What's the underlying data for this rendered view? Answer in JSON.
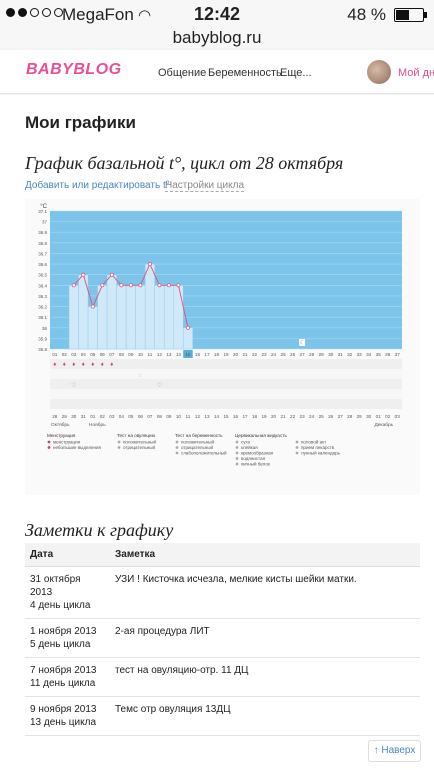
{
  "status": {
    "carrier": "MegaFon",
    "time": "12:42",
    "battery": "48 %",
    "battery_level": 0.48,
    "signal_bars": 2
  },
  "url": "babyblog.ru",
  "header": {
    "logo": "BABYBLOG",
    "nav": [
      "Общение",
      "Беременность",
      "Еще..."
    ],
    "myday": "Мой дне"
  },
  "page": {
    "title": "Мои графики",
    "chart_title": "График базальной t°, цикл от 28 октября",
    "edit_link": "Добавить или редактировать t°",
    "settings_link": "Настройки цикла"
  },
  "chart_data": {
    "type": "line",
    "ylabel": "°C",
    "ylim": [
      35.8,
      37.1
    ],
    "yticks": [
      "37.1",
      "37",
      "36.9",
      "36.8",
      "36.7",
      "36.6",
      "36.5",
      "36.4",
      "36.3",
      "36.2",
      "36.1",
      "36",
      "35.9",
      "35.8"
    ],
    "cycle_days": [
      "01",
      "02",
      "03",
      "04",
      "05",
      "06",
      "07",
      "08",
      "09",
      "10",
      "11",
      "12",
      "13",
      "14",
      "15",
      "16",
      "17",
      "18",
      "19",
      "20",
      "21",
      "22",
      "23",
      "24",
      "25",
      "26",
      "27",
      "28",
      "29",
      "30",
      "31",
      "32",
      "33",
      "34",
      "35",
      "36",
      "37"
    ],
    "series": [
      {
        "values": [
          null,
          null,
          36.4,
          36.5,
          36.2,
          36.4,
          36.5,
          36.4,
          36.4,
          36.4,
          36.6,
          36.4,
          36.4,
          36.4,
          36.0,
          null,
          null,
          null,
          null,
          null,
          null,
          null,
          null,
          null,
          null,
          null,
          null,
          null,
          null,
          null,
          null,
          null,
          null,
          null,
          null,
          null,
          null
        ]
      }
    ],
    "current_day": "15",
    "dates": [
      "28",
      "29",
      "30",
      "31",
      "01",
      "02",
      "03",
      "04",
      "05",
      "06",
      "07",
      "08",
      "09",
      "10",
      "11",
      "12",
      "13",
      "14",
      "15",
      "16",
      "17",
      "18",
      "19",
      "20",
      "21",
      "22",
      "23",
      "24",
      "25",
      "26",
      "27",
      "28",
      "29",
      "30",
      "01",
      "02",
      "03"
    ],
    "months": [
      "Октябрь",
      "Ноябрь",
      "Декабрь"
    ],
    "legend": {
      "groups": [
        {
          "title": "Менструация",
          "items": [
            "менструация",
            "небольшие выделения"
          ]
        },
        {
          "title": "Тест на овуляцию",
          "items": [
            "положительный",
            "отрицательный"
          ]
        },
        {
          "title": "Тест на беременность",
          "items": [
            "положительный",
            "отрицательный",
            "слабоположительный"
          ]
        },
        {
          "title": "Цервикальная жидкость",
          "items": [
            "сухо",
            "клейкая",
            "кремообразная",
            "водянистая",
            "яичный белок"
          ]
        },
        {
          "title": "",
          "items": [
            "половой акт",
            "прием лекарств",
            "лунный календарь"
          ]
        }
      ]
    }
  },
  "notes": {
    "title": "Заметки к графику",
    "headers": [
      "Дата",
      "Заметка"
    ],
    "rows": [
      {
        "date": "31 октября 2013",
        "day": "4 день цикла",
        "note": "УЗИ ! Кисточка исчезла, мелкие кисты шейки матки."
      },
      {
        "date": "1 ноября 2013",
        "day": "5 день цикла",
        "note": "2-ая процедура ЛИТ"
      },
      {
        "date": "7 ноября 2013",
        "day": "11 день цикла",
        "note": "тест на овуляцию-отр. 11 ДЦ"
      },
      {
        "date": "9 ноября 2013",
        "day": "13 день цикла",
        "note": "Темс отр овуляция 13ДЦ"
      }
    ]
  },
  "back_to_top": "↑ Наверх",
  "colors": {
    "plot_bg": "#7cc4ea",
    "bar": "#cfe9f8",
    "line": "#e0507f",
    "link": "#4a86c5",
    "brand": "#e84f95"
  }
}
